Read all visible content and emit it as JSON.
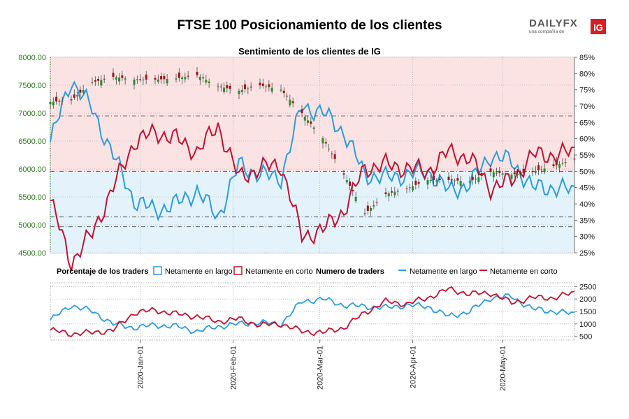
{
  "header": {
    "title": "FTSE 100 Posicionamiento de los clientes",
    "brand_main": "DAILYFX",
    "brand_sub": "una compañía de",
    "brand_badge": "IG"
  },
  "colors": {
    "long": "#2a9de0",
    "short": "#c8102e",
    "long_fill": "#e4f3fb",
    "short_fill": "#fbe3e4",
    "candle_up": "#2e8b2e",
    "candle_down": "#a31515",
    "axis_left": "#2e7d1d",
    "grid": "#9a9a9a"
  },
  "chart_data": [
    {
      "type": "line",
      "title": "Sentimiento de los clientes de IG",
      "left_axis": {
        "ticks": [
          "8000.00",
          "7500.00",
          "7000.00",
          "6500.00",
          "6000.00",
          "5500.00",
          "5000.00",
          "4500.00"
        ],
        "range": [
          4500,
          8000
        ]
      },
      "right_axis": {
        "ticks": [
          "85%",
          "80%",
          "75%",
          "70%",
          "65%",
          "60%",
          "55%",
          "50%",
          "45%",
          "40%",
          "35%",
          "30%",
          "25%"
        ],
        "range": [
          25,
          85
        ]
      },
      "dates": [
        "2019-12-02",
        "2019-12-09",
        "2019-12-16",
        "2019-12-23",
        "2019-12-30",
        "2020-01-06",
        "2020-01-13",
        "2020-01-20",
        "2020-01-27",
        "2020-02-03",
        "2020-02-10",
        "2020-02-17",
        "2020-02-24",
        "2020-03-02",
        "2020-03-09",
        "2020-03-16",
        "2020-03-23",
        "2020-03-30",
        "2020-04-06",
        "2020-04-13",
        "2020-04-20",
        "2020-04-27",
        "2020-05-04",
        "2020-05-11",
        "2020-05-18",
        "2020-05-25"
      ],
      "price_close": [
        7200,
        7230,
        7550,
        7650,
        7600,
        7600,
        7620,
        7680,
        7480,
        7400,
        7500,
        7420,
        7000,
        6550,
        5900,
        5200,
        5550,
        5650,
        5800,
        5800,
        5780,
        5950,
        5900,
        5950,
        6050,
        6180
      ],
      "long_pct": [
        59,
        78,
        69,
        55,
        41,
        38,
        40,
        44,
        36,
        52,
        49,
        48,
        70,
        68,
        62,
        49,
        48,
        49,
        50,
        44,
        46,
        55,
        53,
        45,
        45,
        44
      ],
      "short_pct": [
        41,
        22,
        31,
        45,
        59,
        62,
        60,
        56,
        64,
        48,
        51,
        52,
        30,
        32,
        38,
        51,
        52,
        51,
        50,
        56,
        54,
        45,
        47,
        55,
        55,
        56
      ],
      "ratio_levels_pct": [
        50,
        67,
        36,
        33
      ]
    },
    {
      "type": "line",
      "legend_left_title": "Porcentaje de los traders",
      "legend_left_items": [
        "Netamente en largo",
        "Netamente en corto"
      ],
      "legend_right_title": "Numero de traders",
      "legend_right_items": [
        "Netamente en largo",
        "Netamente en corto"
      ],
      "right_axis": {
        "ticks": [
          "2500",
          "2000",
          "1500",
          "1000",
          "500"
        ],
        "range": [
          500,
          2500
        ]
      },
      "x_tick_labels": [
        "2020-Jan-01",
        "2020-Feb-01",
        "2020-Mar-01",
        "2020-Apr-01",
        "2020-May-01"
      ],
      "long_traders": [
        1150,
        1750,
        1500,
        1000,
        850,
        950,
        900,
        700,
        900,
        1000,
        1050,
        1000,
        1900,
        2000,
        1750,
        1700,
        1650,
        1750,
        1700,
        1300,
        1500,
        2050,
        2100,
        1600,
        1500,
        1400
      ],
      "short_traders": [
        750,
        600,
        650,
        750,
        1450,
        1550,
        1400,
        1300,
        1100,
        1200,
        950,
        1000,
        700,
        650,
        850,
        1450,
        1900,
        1800,
        2050,
        2400,
        2200,
        2250,
        1850,
        2050,
        2050,
        2250
      ]
    }
  ]
}
